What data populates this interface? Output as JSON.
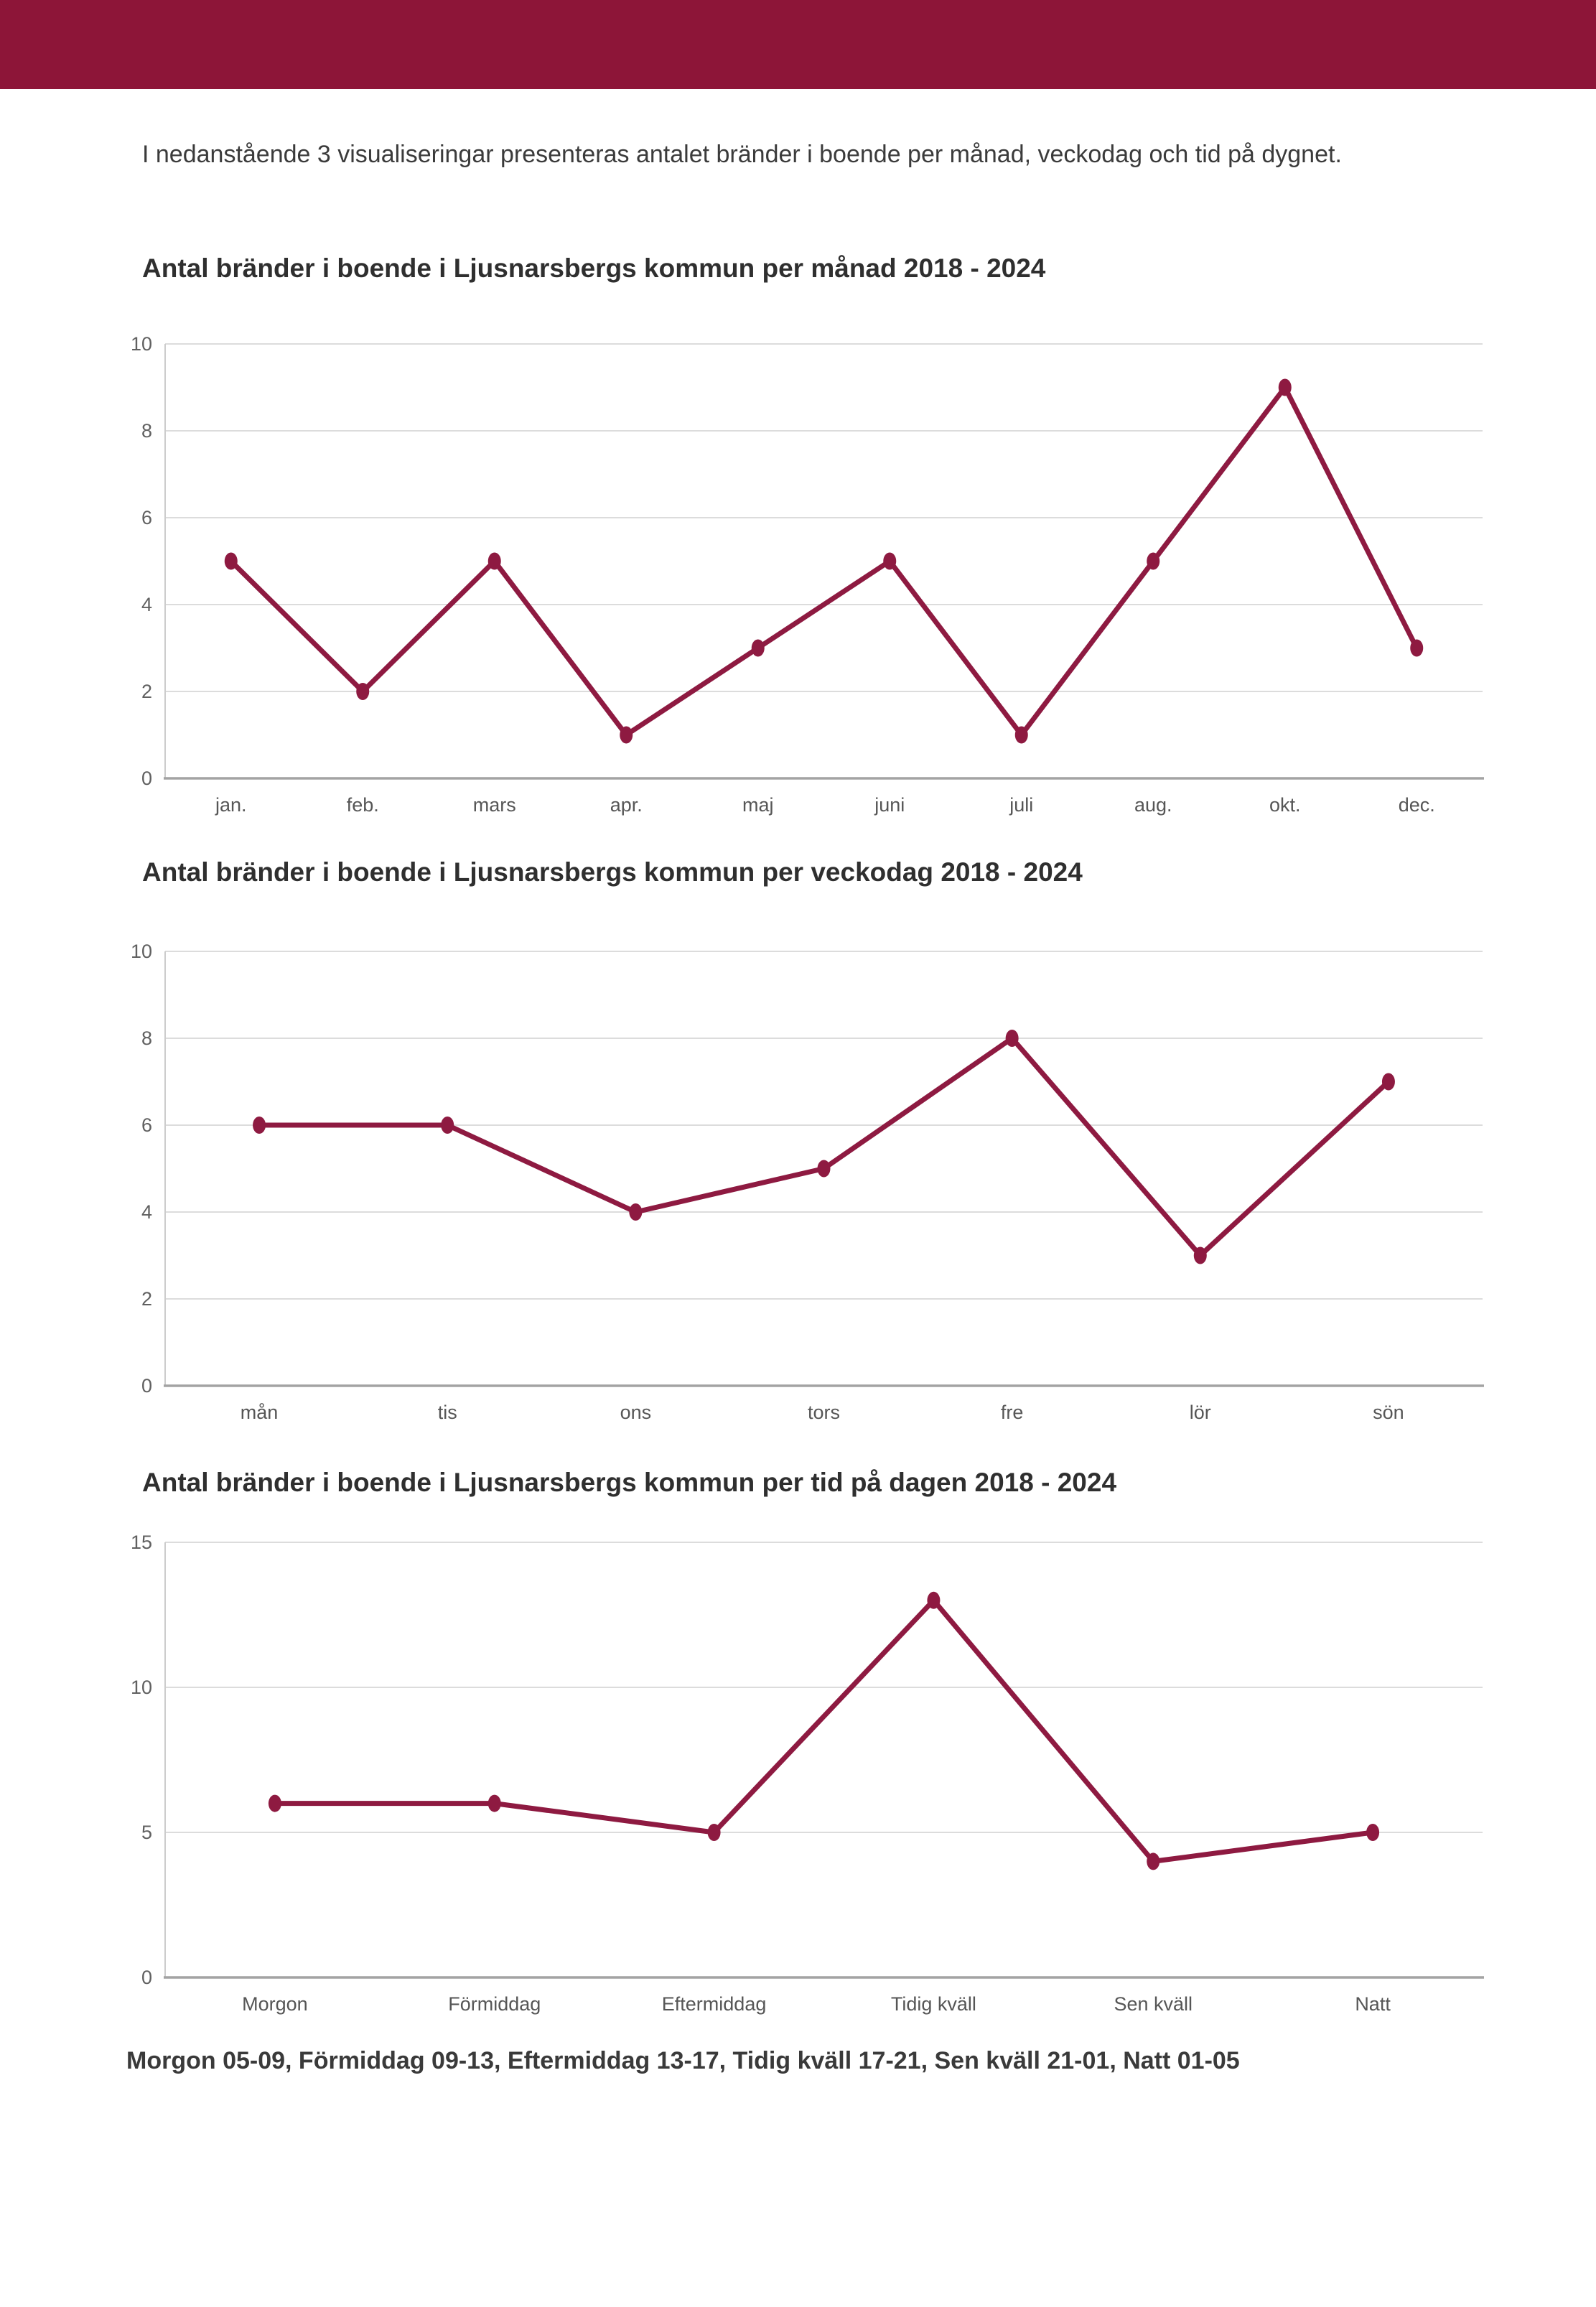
{
  "page": {
    "intro": "I nedanstående 3 visualiseringar presenteras antalet bränder i boende per månad, veckodag och tid på dygnet.",
    "footnote": "Morgon 05-09, Förmiddag 09-13, Eftermiddag 13-17, Tidig kväll 17-21, Sen kväll 21-01, Natt 01-05"
  },
  "colors": {
    "banner": "#8D1538",
    "line": "#8E1A41",
    "marker": "#8E1A41",
    "grid": "#DCDCDC",
    "spine_left": "#CCCCCC",
    "axis_bottom": "#A3A3A3",
    "tick_text": "#606060",
    "category_text": "#565656",
    "title_text": "#2F2F2F",
    "body_text": "#3B3B3B"
  },
  "chart_data": [
    {
      "type": "line",
      "title": "Antal bränder i boende i Ljusnarsbergs kommun per månad 2018 - 2024",
      "categories": [
        "jan.",
        "feb.",
        "mars",
        "apr.",
        "maj",
        "juni",
        "juli",
        "aug.",
        "okt.",
        "dec."
      ],
      "values": [
        5,
        2,
        5,
        1,
        3,
        5,
        1,
        5,
        9,
        3
      ],
      "xlabel": "",
      "ylabel": "",
      "ylim": [
        0,
        10
      ],
      "yticks": [
        0,
        2,
        4,
        6,
        8,
        10
      ],
      "grid": true,
      "legend": "none"
    },
    {
      "type": "line",
      "title": "Antal bränder i boende i Ljusnarsbergs kommun per veckodag 2018 - 2024",
      "categories": [
        "mån",
        "tis",
        "ons",
        "tors",
        "fre",
        "lör",
        "sön"
      ],
      "values": [
        6,
        6,
        4,
        5,
        8,
        3,
        7
      ],
      "xlabel": "",
      "ylabel": "",
      "ylim": [
        0,
        10
      ],
      "yticks": [
        0,
        2,
        4,
        6,
        8,
        10
      ],
      "grid": true,
      "legend": "none"
    },
    {
      "type": "line",
      "title": "Antal bränder i boende i Ljusnarsbergs kommun per tid på dagen 2018 - 2024",
      "categories": [
        "Morgon",
        "Förmiddag",
        "Eftermiddag",
        "Tidig kväll",
        "Sen kväll",
        "Natt"
      ],
      "values": [
        6,
        6,
        5,
        13,
        4,
        5
      ],
      "xlabel": "",
      "ylabel": "",
      "ylim": [
        0,
        15
      ],
      "yticks": [
        0,
        5,
        10,
        15
      ],
      "grid": true,
      "legend": "none"
    }
  ]
}
